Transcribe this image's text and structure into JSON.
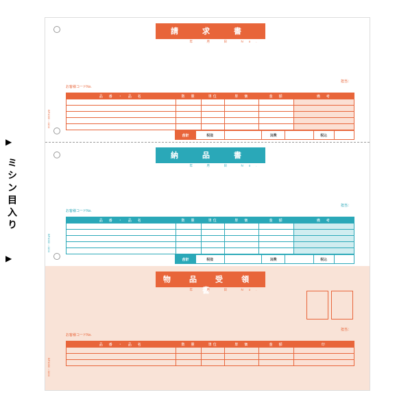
{
  "side_label": "ミシン目入り",
  "arrows": "▶",
  "colors": {
    "orange": "#e8653a",
    "cyan": "#2aa8b8",
    "peach_bg": "#f9e3d7",
    "gray": "#999"
  },
  "common": {
    "date_labels": "年　月　日　No.",
    "code_label": "お客様コードNo.",
    "tanto_label": "担当：",
    "headers": {
      "item": "品　番　・　品　名",
      "qty": "数　量",
      "unit": "単位",
      "uprice": "単　価",
      "amt": "金　額",
      "note": "備　考",
      "seal": "印"
    },
    "totals": {
      "goukei": "合計",
      "zeinuki": "税抜",
      "shohi": "消費",
      "zeikomu": "税込"
    },
    "rows": 5
  },
  "sections": [
    {
      "title": "請　求　書",
      "theme": "orange",
      "has_total": true,
      "has_stamp": false,
      "rows": 5
    },
    {
      "title": "納　品　書",
      "theme": "cyan",
      "has_total": true,
      "has_stamp": false,
      "rows": 5
    },
    {
      "title": "物 品 受 領 書",
      "theme": "orange",
      "has_total": false,
      "has_stamp": true,
      "rows": 3
    }
  ]
}
